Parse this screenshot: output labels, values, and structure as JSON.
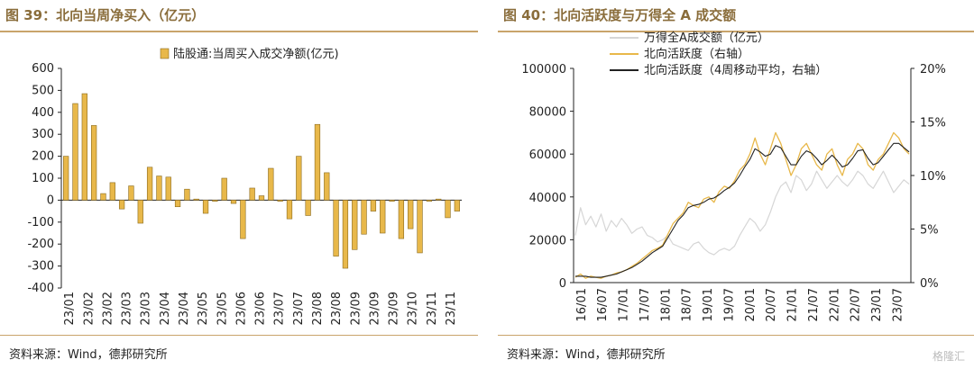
{
  "left_title": "图 39：北向当周净买入（亿元）",
  "right_title": "图 40：北向活跃度与万得全 A 成交额",
  "left_source": "资料来源：Wind，德邦研究所",
  "right_source": "资料来源：Wind，德邦研究所",
  "watermark": "格隆汇",
  "colors": {
    "gold": "#e8b84a",
    "gold_edge": "#8a6a1e",
    "gray": "#d6d6d6",
    "black": "#222222",
    "title": "#8a6d3b"
  },
  "chart_data": [
    {
      "type": "bar",
      "legend": [
        "陆股通:当周买入成交净额(亿元)"
      ],
      "ylim": [
        -400,
        600
      ],
      "yticks": [
        -400,
        -300,
        -200,
        -100,
        0,
        100,
        200,
        300,
        400,
        500,
        600
      ],
      "xticks": [
        "23/01",
        "23/02",
        "23/02",
        "23/03",
        "23/03",
        "23/04",
        "23/04",
        "23/05",
        "23/05",
        "23/06",
        "23/06",
        "23/07",
        "23/07",
        "23/08",
        "23/08",
        "23/09",
        "23/09",
        "23/09",
        "23/10",
        "23/11",
        "23/11"
      ],
      "series": [
        {
          "name": "陆股通:当周买入成交净额(亿元)",
          "values": [
            200,
            440,
            485,
            340,
            30,
            80,
            -40,
            65,
            -105,
            150,
            110,
            105,
            -30,
            50,
            5,
            -60,
            -5,
            100,
            -15,
            -175,
            55,
            20,
            145,
            -5,
            -85,
            200,
            -70,
            345,
            125,
            -255,
            -310,
            -225,
            -155,
            -50,
            -150,
            -5,
            -175,
            -130,
            -240,
            -5,
            5,
            -80,
            -50
          ]
        }
      ]
    },
    {
      "type": "line",
      "legend": [
        "万得全A成交额（亿元）",
        "北向活跃度（右轴）",
        "北向活跃度（4周移动平均，右轴）"
      ],
      "xticks": [
        "16/01",
        "16/07",
        "17/01",
        "17/07",
        "18/01",
        "18/07",
        "19/01",
        "19/07",
        "20/01",
        "20/07",
        "21/01",
        "21/07",
        "22/01",
        "22/07",
        "23/01",
        "23/07"
      ],
      "ylim": [
        0,
        100000
      ],
      "yticks": [
        0,
        20000,
        40000,
        60000,
        80000,
        100000
      ],
      "y2lim": [
        0,
        20
      ],
      "y2ticks": [
        "0%",
        "5%",
        "10%",
        "15%",
        "20%"
      ],
      "series": [
        {
          "name": "万得全A成交额（亿元）",
          "axis": "left",
          "values": [
            22000,
            35000,
            27000,
            31000,
            26000,
            32000,
            24000,
            29000,
            26000,
            30000,
            27000,
            23000,
            25000,
            26000,
            22000,
            21000,
            19000,
            20000,
            22000,
            18000,
            17000,
            16000,
            15000,
            18000,
            19000,
            16000,
            14000,
            13000,
            15000,
            16000,
            15000,
            17000,
            22000,
            26000,
            30000,
            28000,
            24000,
            27000,
            33000,
            40000,
            45000,
            47000,
            42000,
            50000,
            48000,
            43000,
            46000,
            52000,
            48000,
            44000,
            47000,
            50000,
            47000,
            45000,
            48000,
            52000,
            50000,
            46000,
            44000,
            48000,
            52000,
            47000,
            42000,
            45000,
            48000,
            46000
          ]
        },
        {
          "name": "北向活跃度（右轴）",
          "axis": "right",
          "values": [
            0.5,
            0.8,
            0.4,
            0.6,
            0.5,
            0.4,
            0.6,
            0.7,
            0.9,
            1.0,
            1.2,
            1.5,
            1.8,
            2.2,
            2.6,
            3.0,
            3.2,
            3.5,
            4.5,
            5.5,
            6.0,
            6.5,
            7.5,
            7.2,
            7.0,
            7.8,
            8.0,
            7.5,
            8.5,
            9.0,
            8.8,
            9.5,
            10.5,
            11.0,
            12.0,
            13.5,
            12.0,
            11.0,
            12.5,
            14.0,
            13.0,
            11.5,
            10.0,
            11.0,
            12.5,
            13.0,
            12.0,
            11.0,
            10.5,
            12.0,
            12.5,
            11.0,
            10.0,
            11.5,
            12.0,
            13.0,
            12.5,
            11.0,
            10.5,
            11.5,
            12.0,
            13.0,
            14.0,
            13.5,
            12.5,
            12.0
          ]
        },
        {
          "name": "北向活跃度（4周移动平均，右轴）",
          "axis": "right",
          "values": [
            0.6,
            0.6,
            0.6,
            0.5,
            0.5,
            0.5,
            0.6,
            0.7,
            0.8,
            1.0,
            1.2,
            1.4,
            1.7,
            2.0,
            2.4,
            2.8,
            3.1,
            3.4,
            4.2,
            5.0,
            5.8,
            6.3,
            7.0,
            7.2,
            7.3,
            7.5,
            7.8,
            7.9,
            8.2,
            8.6,
            8.9,
            9.3,
            10.0,
            10.8,
            11.5,
            12.5,
            12.2,
            11.8,
            12.0,
            12.8,
            12.6,
            11.8,
            11.0,
            11.0,
            11.8,
            12.3,
            12.1,
            11.6,
            11.0,
            11.4,
            11.9,
            11.4,
            10.8,
            11.0,
            11.6,
            12.3,
            12.4,
            11.6,
            11.0,
            11.2,
            11.8,
            12.4,
            13.0,
            13.0,
            12.6,
            12.2
          ]
        }
      ]
    }
  ]
}
